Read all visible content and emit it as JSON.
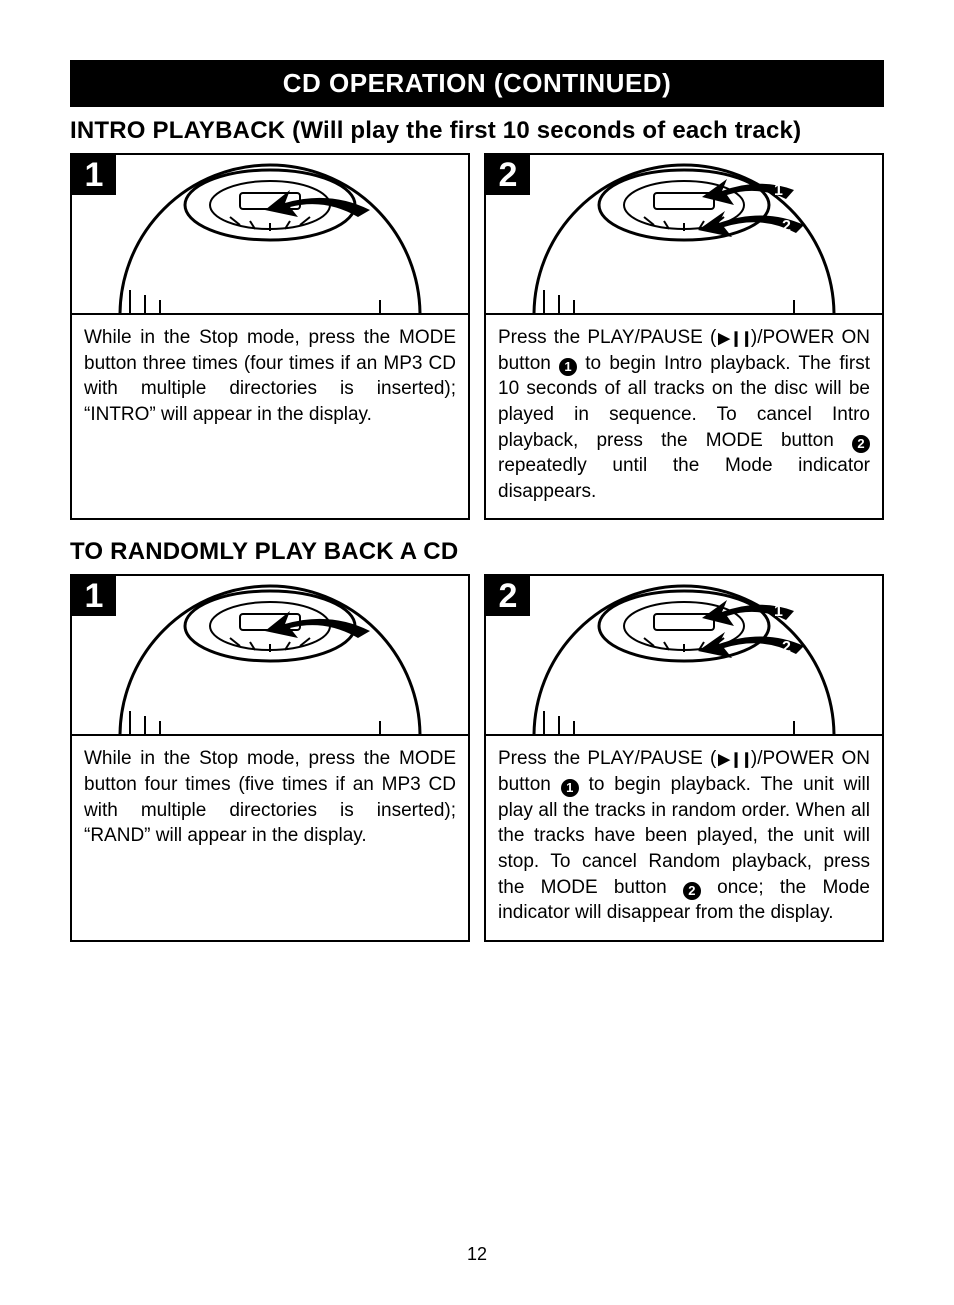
{
  "colors": {
    "black": "#000000",
    "white": "#ffffff"
  },
  "title_bar": "CD OPERATION (CONTINUED)",
  "page_number": "12",
  "sections": [
    {
      "heading": "INTRO PLAYBACK (Will play the first 10 seconds of each track)",
      "steps": [
        {
          "num": "1",
          "callouts": [],
          "text": "While in the Stop mode, press the MODE button three times (four times if an MP3 CD with multiple directories is inserted); “INTRO” will appear in the display."
        },
        {
          "num": "2",
          "callouts": [
            "1",
            "2"
          ],
          "text_parts": [
            "Press the PLAY/PAUSE (",
            {
              "icon": "play-pause"
            },
            ")/POWER ON button ",
            {
              "circled": "1"
            },
            " to begin Intro playback. The first 10 seconds of all tracks on the disc will be played in sequence. To cancel Intro playback, press the MODE button ",
            {
              "circled": "2"
            },
            " repeatedly until the Mode indicator disappears."
          ]
        }
      ]
    },
    {
      "heading": "TO RANDOMLY PLAY BACK A CD",
      "steps": [
        {
          "num": "1",
          "callouts": [],
          "text": "While in the Stop mode, press the MODE button four times (five times if an MP3 CD with multiple directories is inserted); “RAND” will appear in the display."
        },
        {
          "num": "2",
          "callouts": [
            "1",
            "2"
          ],
          "text_parts": [
            "Press the PLAY/PAUSE (",
            {
              "icon": "play-pause"
            },
            ")/POWER ON button ",
            {
              "circled": "1"
            },
            " to begin playback. The unit will play all the tracks in random order. When all the tracks have been played, the unit will stop. To cancel Random playback, press the MODE button ",
            {
              "circled": "2"
            },
            " once; the Mode indicator will disappear from the display."
          ]
        }
      ]
    }
  ]
}
